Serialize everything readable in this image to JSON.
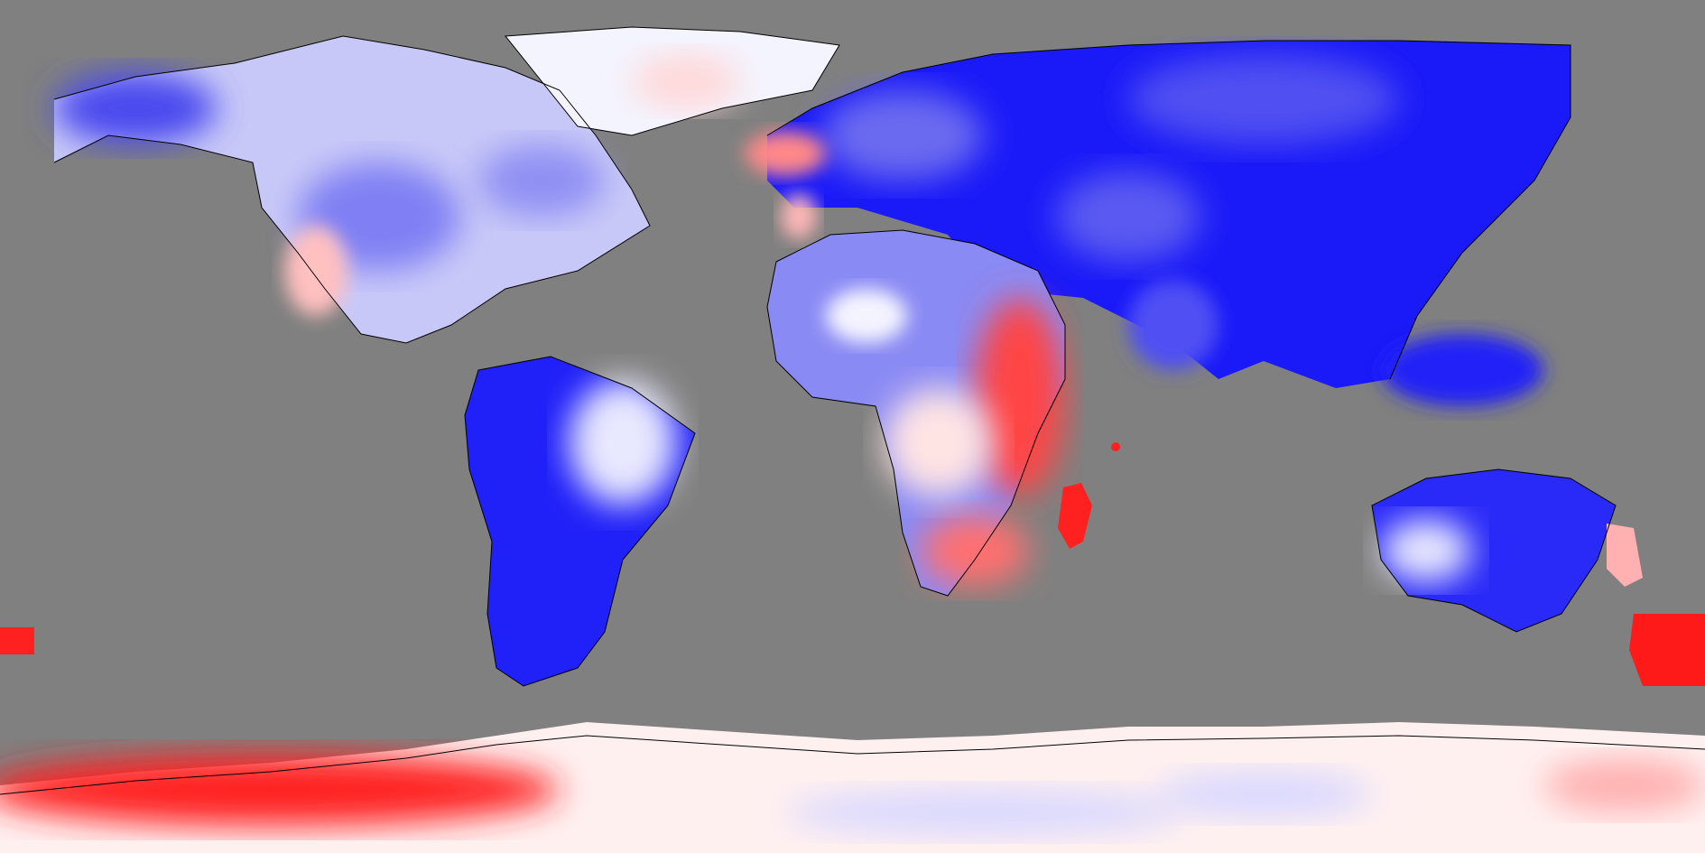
{
  "map": {
    "projection": "equirectangular",
    "background_color": "#808080",
    "colors": {
      "strong_negative": "#0000ff",
      "neutral": "#ffffff",
      "strong_positive": "#ff0000",
      "coastline": "#000000"
    },
    "regions": [
      {
        "id": "north-america",
        "value": -0.35
      },
      {
        "id": "alaska",
        "value": -0.55
      },
      {
        "id": "greenland",
        "value": 0.05
      },
      {
        "id": "us-southwest",
        "value": 0.3
      },
      {
        "id": "south-america-west",
        "value": -1.0
      },
      {
        "id": "south-america-east",
        "value": -0.25
      },
      {
        "id": "europe-asia",
        "value": -0.8
      },
      {
        "id": "north-africa",
        "value": -0.55
      },
      {
        "id": "east-africa",
        "value": 0.85
      },
      {
        "id": "southern-africa",
        "value": 0.55
      },
      {
        "id": "madagascar",
        "value": 1.0
      },
      {
        "id": "australia",
        "value": -0.85
      },
      {
        "id": "new-zealand",
        "value": 1.0
      },
      {
        "id": "antarctica-west",
        "value": 0.9
      },
      {
        "id": "antarctica-east",
        "value": 0.1
      }
    ]
  }
}
